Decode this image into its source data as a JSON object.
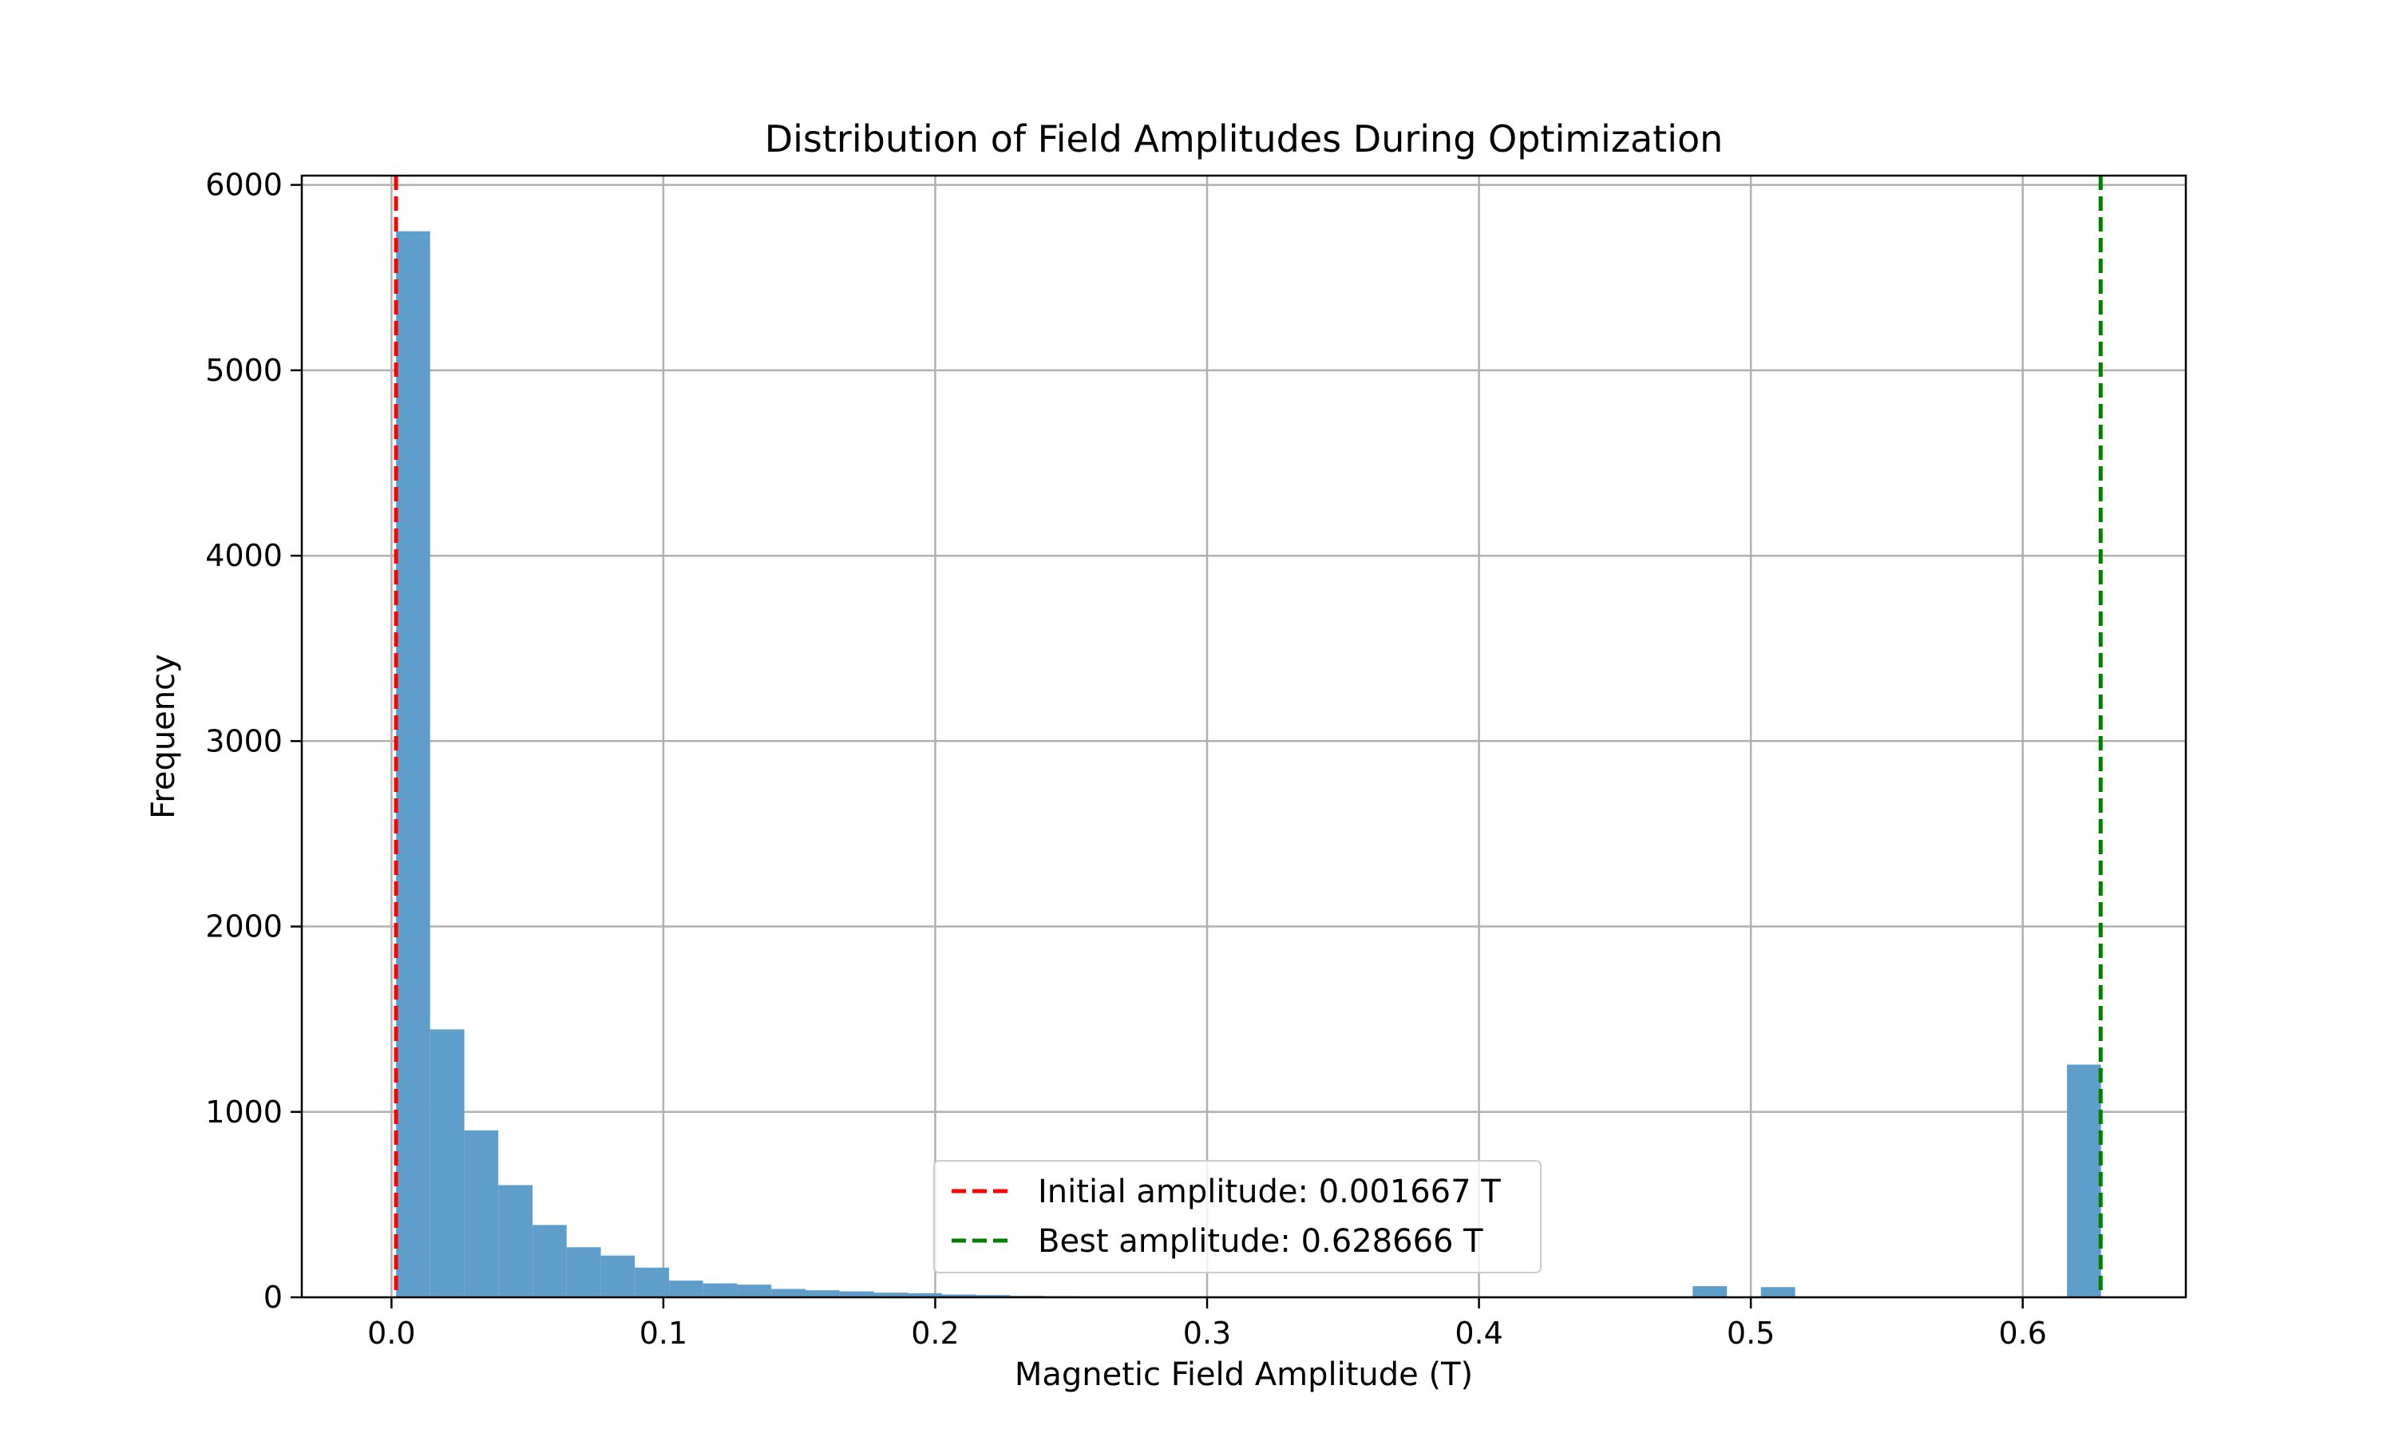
{
  "chart_data": {
    "type": "bar",
    "subtype": "histogram",
    "title": "Distribution of Field Amplitudes During Optimization",
    "xlabel": "Magnetic Field Amplitude (T)",
    "ylabel": "Frequency",
    "xlim": [
      -0.033,
      0.66
    ],
    "ylim": [
      0,
      6050
    ],
    "grid": true,
    "x_ticks": [
      0.0,
      0.1,
      0.2,
      0.3,
      0.4,
      0.5,
      0.6
    ],
    "x_tick_labels": [
      "0.0",
      "0.1",
      "0.2",
      "0.3",
      "0.4",
      "0.5",
      "0.6"
    ],
    "y_ticks": [
      0,
      1000,
      2000,
      3000,
      4000,
      5000,
      6000
    ],
    "y_tick_labels": [
      "0",
      "1000",
      "2000",
      "3000",
      "4000",
      "5000",
      "6000"
    ],
    "bar_color": "#5f9ecb",
    "bins": [
      {
        "x0": 0.0017,
        "x1": 0.0142,
        "count": 5750
      },
      {
        "x0": 0.0142,
        "x1": 0.0268,
        "count": 1445
      },
      {
        "x0": 0.0268,
        "x1": 0.0393,
        "count": 900
      },
      {
        "x0": 0.0393,
        "x1": 0.0519,
        "count": 605
      },
      {
        "x0": 0.0519,
        "x1": 0.0644,
        "count": 390
      },
      {
        "x0": 0.0644,
        "x1": 0.077,
        "count": 270
      },
      {
        "x0": 0.077,
        "x1": 0.0895,
        "count": 225
      },
      {
        "x0": 0.0895,
        "x1": 0.1021,
        "count": 160
      },
      {
        "x0": 0.1021,
        "x1": 0.1146,
        "count": 90
      },
      {
        "x0": 0.1146,
        "x1": 0.1272,
        "count": 75
      },
      {
        "x0": 0.1272,
        "x1": 0.1397,
        "count": 68
      },
      {
        "x0": 0.1397,
        "x1": 0.1523,
        "count": 45
      },
      {
        "x0": 0.1523,
        "x1": 0.1648,
        "count": 38
      },
      {
        "x0": 0.1648,
        "x1": 0.1774,
        "count": 32
      },
      {
        "x0": 0.1774,
        "x1": 0.1899,
        "count": 25
      },
      {
        "x0": 0.1899,
        "x1": 0.2025,
        "count": 22
      },
      {
        "x0": 0.2025,
        "x1": 0.215,
        "count": 15
      },
      {
        "x0": 0.215,
        "x1": 0.2276,
        "count": 12
      },
      {
        "x0": 0.2276,
        "x1": 0.2401,
        "count": 8
      },
      {
        "x0": 0.2401,
        "x1": 0.2527,
        "count": 6
      },
      {
        "x0": 0.2527,
        "x1": 0.2652,
        "count": 4
      },
      {
        "x0": 0.2652,
        "x1": 0.2778,
        "count": 3
      },
      {
        "x0": 0.2778,
        "x1": 0.2903,
        "count": 2
      },
      {
        "x0": 0.2903,
        "x1": 0.3029,
        "count": 2
      },
      {
        "x0": 0.4786,
        "x1": 0.4912,
        "count": 60
      },
      {
        "x0": 0.5037,
        "x1": 0.5163,
        "count": 55
      },
      {
        "x0": 0.6163,
        "x1": 0.6288,
        "count": 1255
      }
    ],
    "reference_lines": [
      {
        "label": "Initial amplitude: 0.001667 T",
        "x": 0.001667,
        "color": "#ff0000",
        "style": "dashed"
      },
      {
        "label": "Best amplitude: 0.628666 T",
        "x": 0.628666,
        "color": "#008000",
        "style": "dashed"
      }
    ],
    "legend_position": "lower-center"
  }
}
